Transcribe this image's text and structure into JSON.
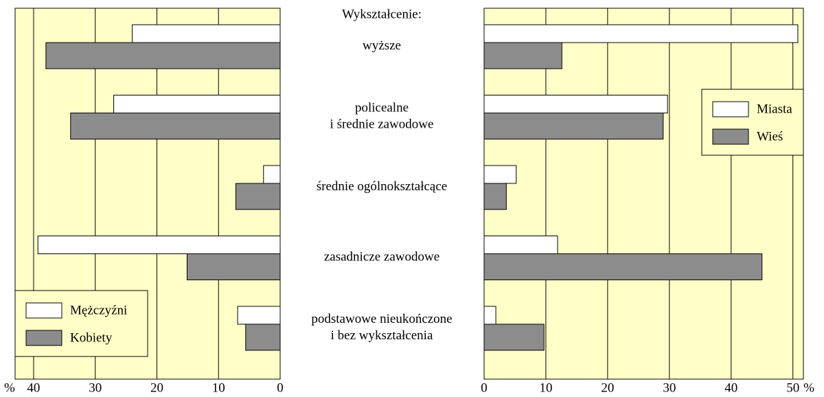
{
  "chart_data": [
    {
      "type": "barh",
      "title": "Wykształcenie:",
      "categories": [
        "wyższe",
        "policealne\ni średnie zawodowe",
        "średnie ogólnokształcące",
        "zasadnicze zawodowe",
        "podstawowe nieukończone\ni bez wykształcenia"
      ],
      "series": [
        {
          "name": "Mężczyźni",
          "color": "#ffffff",
          "values": [
            24,
            27,
            2.7,
            39.3,
            6.9
          ]
        },
        {
          "name": "Kobiety",
          "color": "#8c8c8c",
          "values": [
            38,
            34,
            7.2,
            15.1,
            5.6
          ]
        }
      ],
      "xlim": [
        0,
        43
      ],
      "xticks": [
        0,
        10,
        20,
        30,
        40
      ],
      "xlabel": "%",
      "x_reversed": true,
      "grid": true,
      "legend": "lower left"
    },
    {
      "type": "barh",
      "series": [
        {
          "name": "Miasta",
          "color": "#ffffff",
          "values": [
            50.8,
            29.7,
            5.2,
            11.9,
            1.9
          ]
        },
        {
          "name": "Wieś",
          "color": "#8c8c8c",
          "values": [
            12.6,
            29.0,
            3.6,
            45,
            9.7
          ]
        }
      ],
      "xlim": [
        0,
        51.7
      ],
      "xticks": [
        0,
        10,
        20,
        30,
        40,
        50
      ],
      "xlabel": "%",
      "x_reversed": false,
      "grid": true,
      "legend": "upper right"
    }
  ]
}
